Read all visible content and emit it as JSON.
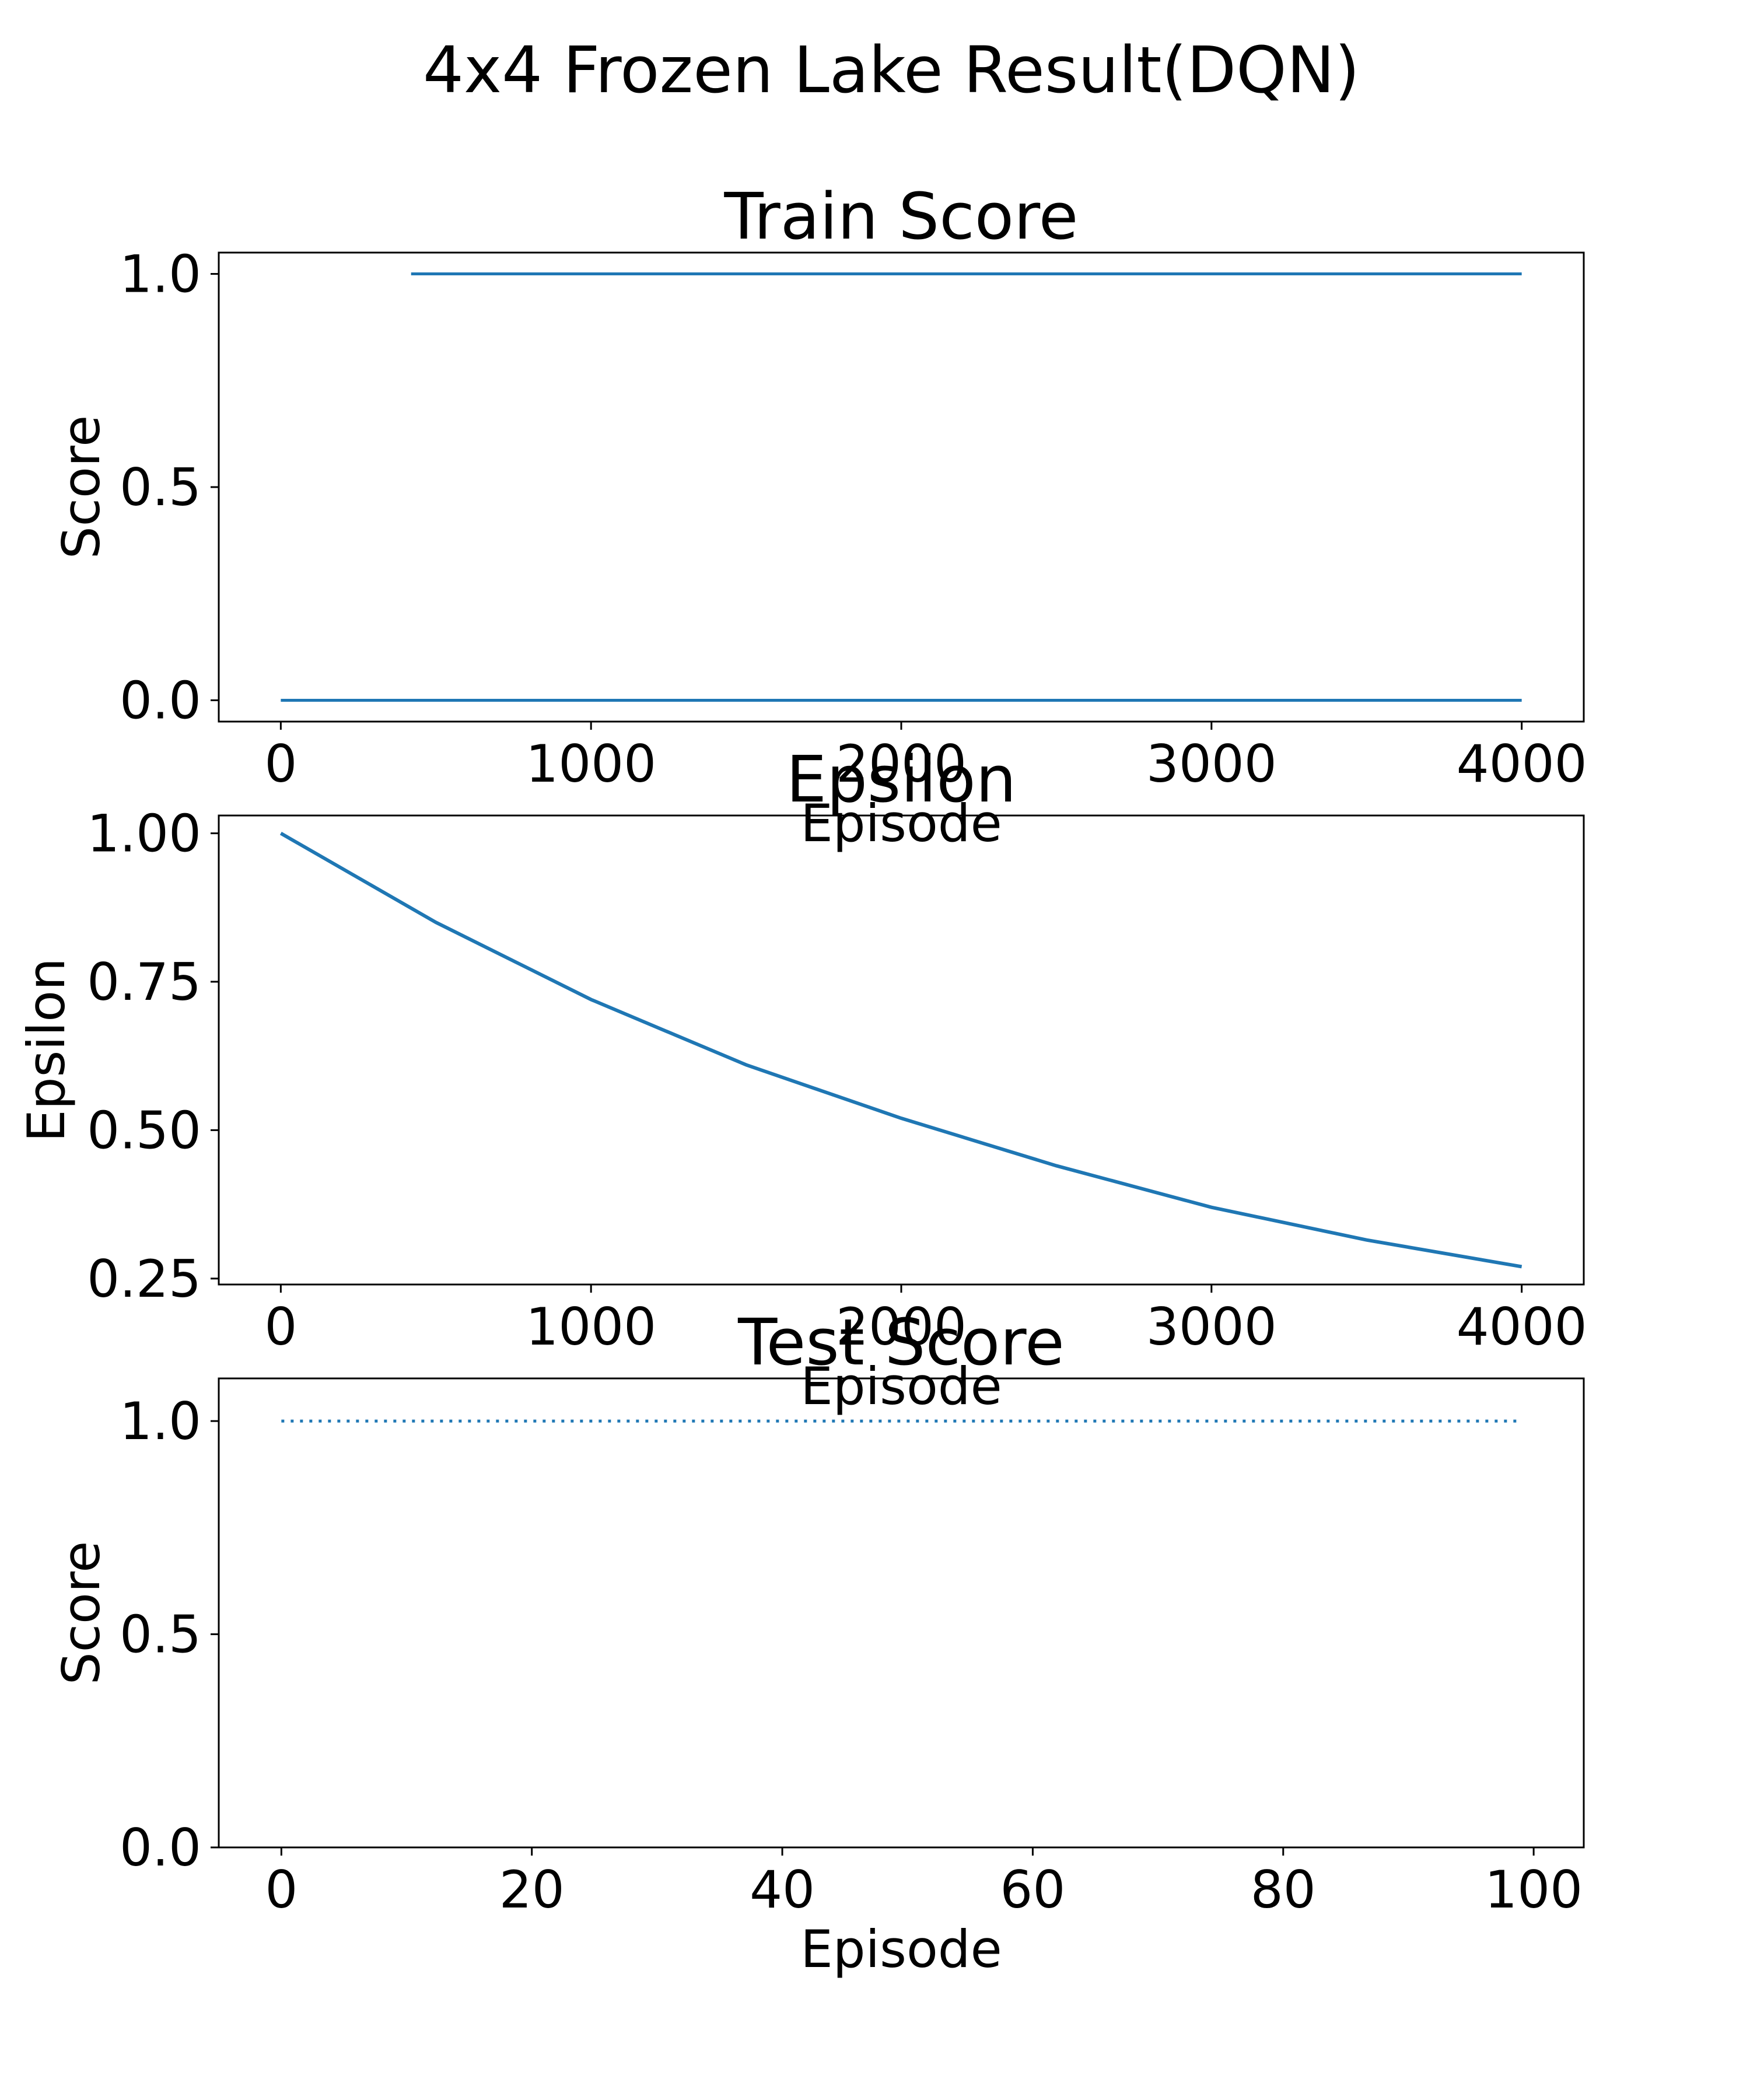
{
  "figure": {
    "title": "4x4 Frozen Lake Result(DQN)"
  },
  "chart_data": [
    {
      "type": "line",
      "title": "Train Score",
      "xlabel": "Episode",
      "ylabel": "Score",
      "xlim": [
        -200,
        4200
      ],
      "ylim": [
        -0.05,
        1.05
      ],
      "xticks": [
        0,
        1000,
        2000,
        3000,
        4000
      ],
      "xtick_labels": [
        "0",
        "1000",
        "2000",
        "3000",
        "4000"
      ],
      "yticks": [
        0.0,
        0.5,
        1.0
      ],
      "ytick_labels": [
        "0.0",
        "0.5",
        "1.0"
      ],
      "series": [
        {
          "values_description_free": true,
          "segments": [
            {
              "y": 0.0,
              "x_start": 0,
              "x_end": 4000
            },
            {
              "y": 1.0,
              "x_start": 420,
              "x_end": 4000
            }
          ]
        }
      ],
      "color": "#1f77b4"
    },
    {
      "type": "line",
      "title": "Epsilon",
      "xlabel": "Episode",
      "ylabel": "Epsilon",
      "xlim": [
        -200,
        4200
      ],
      "ylim": [
        0.24,
        1.03
      ],
      "xticks": [
        0,
        1000,
        2000,
        3000,
        4000
      ],
      "xtick_labels": [
        "0",
        "1000",
        "2000",
        "3000",
        "4000"
      ],
      "yticks": [
        0.25,
        0.5,
        0.75,
        1.0
      ],
      "ytick_labels": [
        "0.25",
        "0.50",
        "0.75",
        "1.00"
      ],
      "series": [
        {
          "x": [
            0,
            500,
            1000,
            1500,
            2000,
            2500,
            3000,
            3500,
            4000
          ],
          "y": [
            1.0,
            0.85,
            0.72,
            0.61,
            0.52,
            0.44,
            0.37,
            0.315,
            0.27
          ]
        }
      ],
      "color": "#1f77b4"
    },
    {
      "type": "line",
      "title": "Test Score",
      "xlabel": "Episode",
      "ylabel": "Score",
      "xlim": [
        -5,
        104
      ],
      "ylim": [
        0.0,
        1.1
      ],
      "xticks": [
        0,
        20,
        40,
        60,
        80,
        100
      ],
      "xtick_labels": [
        "0",
        "20",
        "40",
        "60",
        "80",
        "100"
      ],
      "yticks": [
        0.0,
        0.5,
        1.0
      ],
      "ytick_labels": [
        "0.0",
        "0.5",
        "1.0"
      ],
      "series": [
        {
          "y_constant": 1.0,
          "x_start": 0,
          "x_end": 99,
          "style": "dotted"
        }
      ],
      "color": "#1f77b4"
    }
  ]
}
